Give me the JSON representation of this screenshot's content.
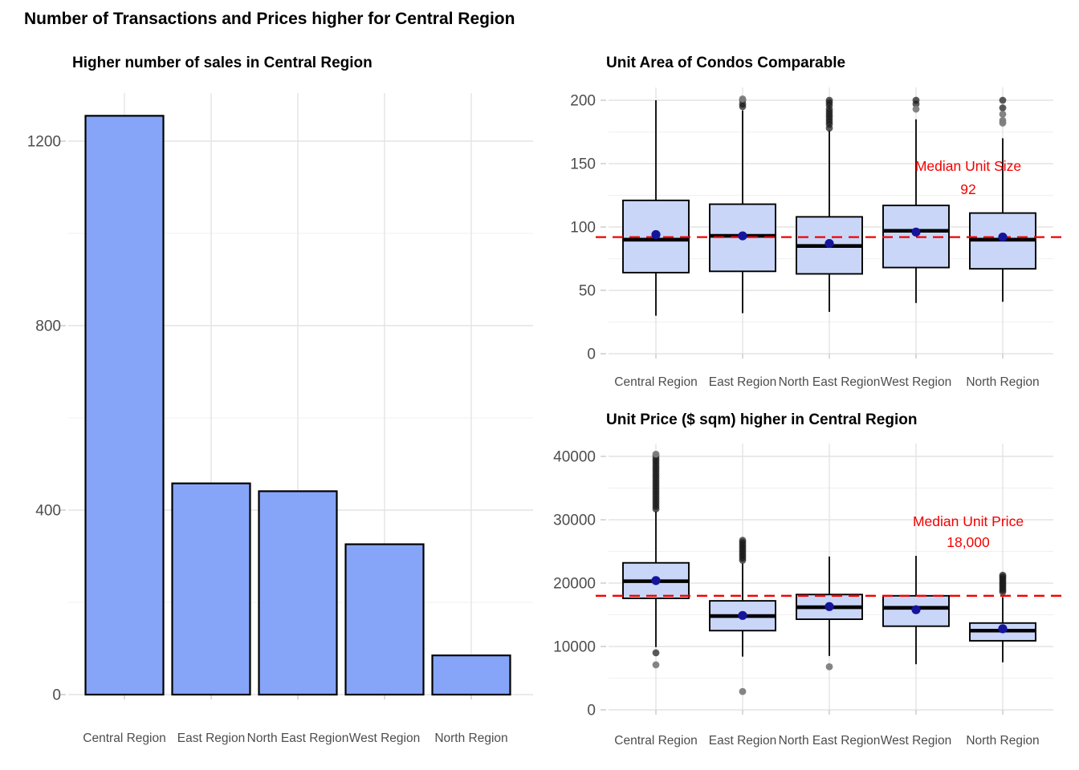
{
  "page_title": "Number of Transactions and Prices higher for Central Region",
  "categories": [
    "Central Region",
    "East Region",
    "North East Region",
    "West Region",
    "North Region"
  ],
  "colors": {
    "bar_fill": "#86a5f9",
    "box_fill": "#c9d6f8",
    "shape_stroke": "#000000",
    "mean_dot": "#15159b",
    "outlier_black": "#1a1a1a",
    "outlier_gray": "#7d7d7d",
    "ref_red": "#f40000",
    "grid_major": "#e4e4e4",
    "grid_minor": "#f0f0f0",
    "axis_text": "#4d4d4d",
    "tick_mark": "#c9c9c9"
  },
  "chart_data": [
    {
      "id": "sales-bar",
      "type": "bar",
      "title": "Higher number of sales in Central Region",
      "categories": [
        "Central Region",
        "East Region",
        "North East Region",
        "West Region",
        "North Region"
      ],
      "values": [
        1255,
        458,
        441,
        326,
        85
      ],
      "xlabel": "",
      "ylabel": "",
      "ylim": [
        0,
        1300
      ],
      "yticks": [
        0,
        400,
        800,
        1200
      ],
      "ytick_labels": [
        "0",
        "400",
        "800",
        "1200"
      ],
      "yticks_minor": [
        200,
        600,
        1000
      ],
      "legend": "none",
      "grid": "on"
    },
    {
      "id": "unit-area-box",
      "type": "boxplot",
      "title": "Unit Area of Condos Comparable",
      "categories": [
        "Central Region",
        "East Region",
        "North East Region",
        "West Region",
        "North Region"
      ],
      "ylim": [
        0,
        210
      ],
      "yticks": [
        0,
        50,
        100,
        150,
        200
      ],
      "ytick_labels": [
        "0",
        "50",
        "100",
        "150",
        "200"
      ],
      "yticks_minor": [
        25,
        75,
        125,
        175
      ],
      "ref_line": {
        "value": 92,
        "label": "Median Unit Size",
        "value_label": "92"
      },
      "legend": "none",
      "grid": "on",
      "series": [
        {
          "category": "Central Region",
          "low": 30,
          "q1": 64,
          "median": 90,
          "mean": 94,
          "q3": 121,
          "high": 200,
          "outliers": [],
          "outliers_gray": []
        },
        {
          "category": "East Region",
          "low": 32,
          "q1": 65,
          "median": 93,
          "mean": 93,
          "q3": 118,
          "high": 192,
          "outliers": [
            195,
            197,
            200
          ],
          "outliers_gray": [
            201
          ]
        },
        {
          "category": "North East Region",
          "low": 33,
          "q1": 63,
          "median": 85,
          "mean": 87,
          "q3": 108,
          "high": 176,
          "outliers": [
            178,
            181,
            183,
            185,
            187,
            189,
            191,
            193,
            196,
            198,
            200
          ],
          "outliers_gray": []
        },
        {
          "category": "West Region",
          "low": 40,
          "q1": 68,
          "median": 97,
          "mean": 96,
          "q3": 117,
          "high": 185,
          "outliers": [
            197,
            200
          ],
          "outliers_gray": [
            193
          ]
        },
        {
          "category": "North Region",
          "low": 41,
          "q1": 67,
          "median": 90,
          "mean": 92,
          "q3": 111,
          "high": 170,
          "outliers": [
            194,
            200
          ],
          "outliers_gray": [
            182,
            184,
            189
          ]
        }
      ]
    },
    {
      "id": "unit-price-box",
      "type": "boxplot",
      "title": "Unit Price ($ sqm) higher in Central Region",
      "categories": [
        "Central Region",
        "East Region",
        "North East Region",
        "West Region",
        "North Region"
      ],
      "ylim": [
        0,
        42000
      ],
      "yticks": [
        0,
        10000,
        20000,
        30000,
        40000
      ],
      "ytick_labels": [
        "0",
        "10000",
        "20000",
        "30000",
        "40000"
      ],
      "yticks_minor": [
        5000,
        15000,
        25000,
        35000
      ],
      "ref_line": {
        "value": 18000,
        "label": "Median Unit Price",
        "value_label": "18,000"
      },
      "legend": "none",
      "grid": "on",
      "series": [
        {
          "category": "Central Region",
          "low": 9900,
          "q1": 17600,
          "median": 20300,
          "mean": 20400,
          "q3": 23200,
          "high": 31300,
          "outliers": [
            31700,
            32100,
            32500,
            32900,
            33300,
            33700,
            34100,
            34500,
            34900,
            35300,
            35700,
            36100,
            36500,
            36900,
            37300,
            37700,
            38100,
            38500,
            38900,
            39300,
            39700,
            40100,
            9000
          ],
          "outliers_gray": [
            40350,
            7100
          ]
        },
        {
          "category": "East Region",
          "low": 8400,
          "q1": 12500,
          "median": 14800,
          "mean": 14900,
          "q3": 17200,
          "high": 23100,
          "outliers": [
            23600,
            23950,
            24300,
            24650,
            25000,
            25350,
            25700,
            26050,
            26400,
            26750
          ],
          "outliers_gray": [
            2900
          ]
        },
        {
          "category": "North East Region",
          "low": 8500,
          "q1": 14300,
          "median": 16200,
          "mean": 16300,
          "q3": 18200,
          "high": 24200,
          "outliers": [],
          "outliers_gray": [
            6800
          ]
        },
        {
          "category": "West Region",
          "low": 7200,
          "q1": 13200,
          "median": 16100,
          "mean": 15800,
          "q3": 18000,
          "high": 24300,
          "outliers": [],
          "outliers_gray": []
        },
        {
          "category": "North Region",
          "low": 7500,
          "q1": 10900,
          "median": 12500,
          "mean": 12800,
          "q3": 13700,
          "high": 17800,
          "outliers": [
            18600,
            18900,
            19200,
            19500,
            19800,
            20100,
            20400,
            20700,
            21000,
            21250
          ],
          "outliers_gray": []
        }
      ]
    }
  ]
}
